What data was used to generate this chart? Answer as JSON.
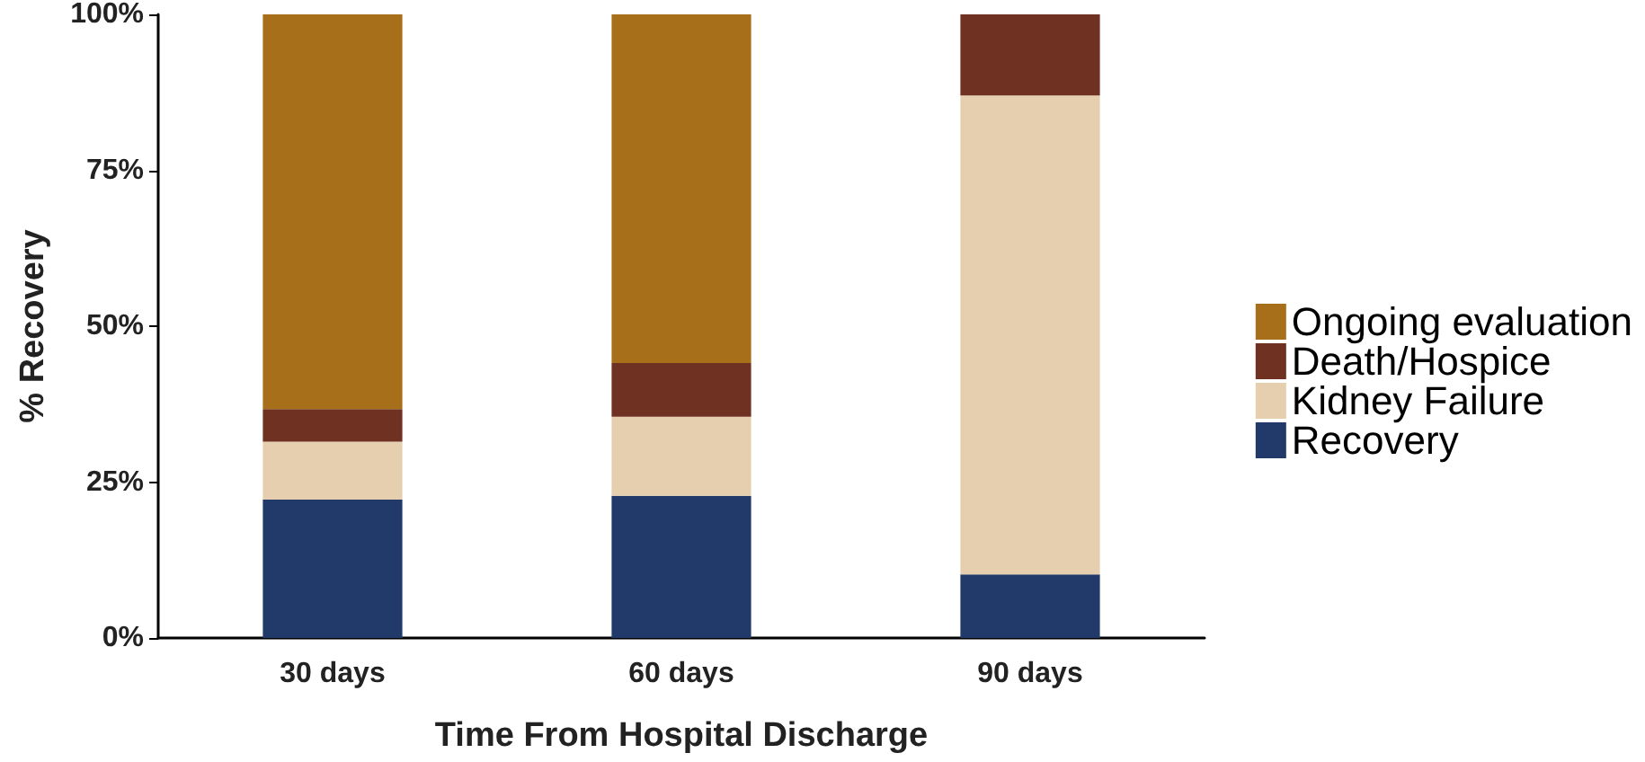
{
  "chart_data": {
    "type": "bar",
    "stacked": true,
    "xlabel": "Time From Hospital Discharge",
    "ylabel": "% Recovery",
    "categories": [
      "30 days",
      "60 days",
      "90 days"
    ],
    "series": [
      {
        "name": "Recovery",
        "color": "#213a69",
        "values": [
          22.2,
          22.8,
          10.2
        ]
      },
      {
        "name": "Kidney Failure",
        "color": "#e5cfae",
        "values": [
          9.3,
          12.7,
          76.8
        ]
      },
      {
        "name": "Death/Hospice",
        "color": "#6e3122",
        "values": [
          5.2,
          8.6,
          13.0
        ]
      },
      {
        "name": "Ongoing evaluation",
        "color": "#a86f1a",
        "values": [
          63.3,
          55.9,
          0
        ]
      }
    ],
    "ylim": [
      0,
      100
    ],
    "yticks": [
      {
        "value": 0,
        "label": "0%"
      },
      {
        "value": 25,
        "label": "25%"
      },
      {
        "value": 50,
        "label": "50%"
      },
      {
        "value": 75,
        "label": "75%"
      },
      {
        "value": 100,
        "label": "100%"
      }
    ],
    "grid": false,
    "legend": "right"
  }
}
